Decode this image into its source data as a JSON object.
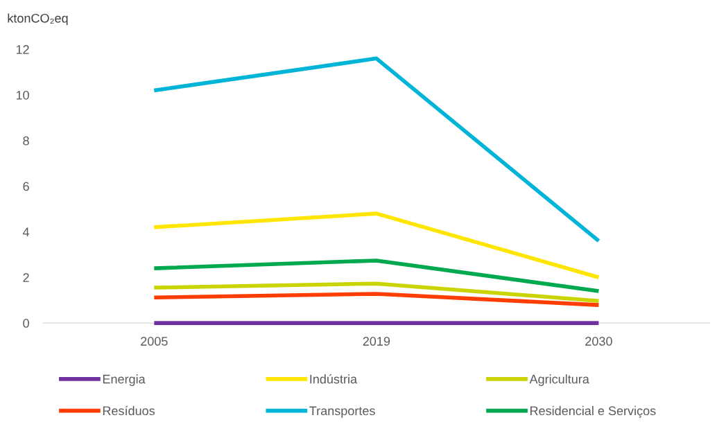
{
  "chart_data": {
    "type": "line",
    "ylabel": "ktonCO₂eq",
    "categories": [
      "2005",
      "2019",
      "2030"
    ],
    "series": [
      {
        "name": "Energia",
        "color": "#7030a0",
        "values": [
          0,
          0,
          0
        ]
      },
      {
        "name": "Indústria",
        "color": "#ffe600",
        "values": [
          4.2,
          4.8,
          2.0
        ]
      },
      {
        "name": "Agricultura",
        "color": "#c9d400",
        "values": [
          1.55,
          1.73,
          0.97
        ]
      },
      {
        "name": "Resíduos",
        "color": "#ff3d00",
        "values": [
          1.12,
          1.28,
          0.79
        ]
      },
      {
        "name": "Transportes",
        "color": "#00b4d8",
        "values": [
          10.2,
          11.6,
          3.6
        ]
      },
      {
        "name": "Residencial e Serviços",
        "color": "#00a94f",
        "values": [
          2.4,
          2.74,
          1.4
        ]
      }
    ],
    "ylim": [
      0,
      12
    ],
    "yticks": [
      0,
      2,
      4,
      6,
      8,
      10,
      12
    ],
    "grid": false,
    "legend": "bottom",
    "marker": "none",
    "line_style": "solid"
  }
}
